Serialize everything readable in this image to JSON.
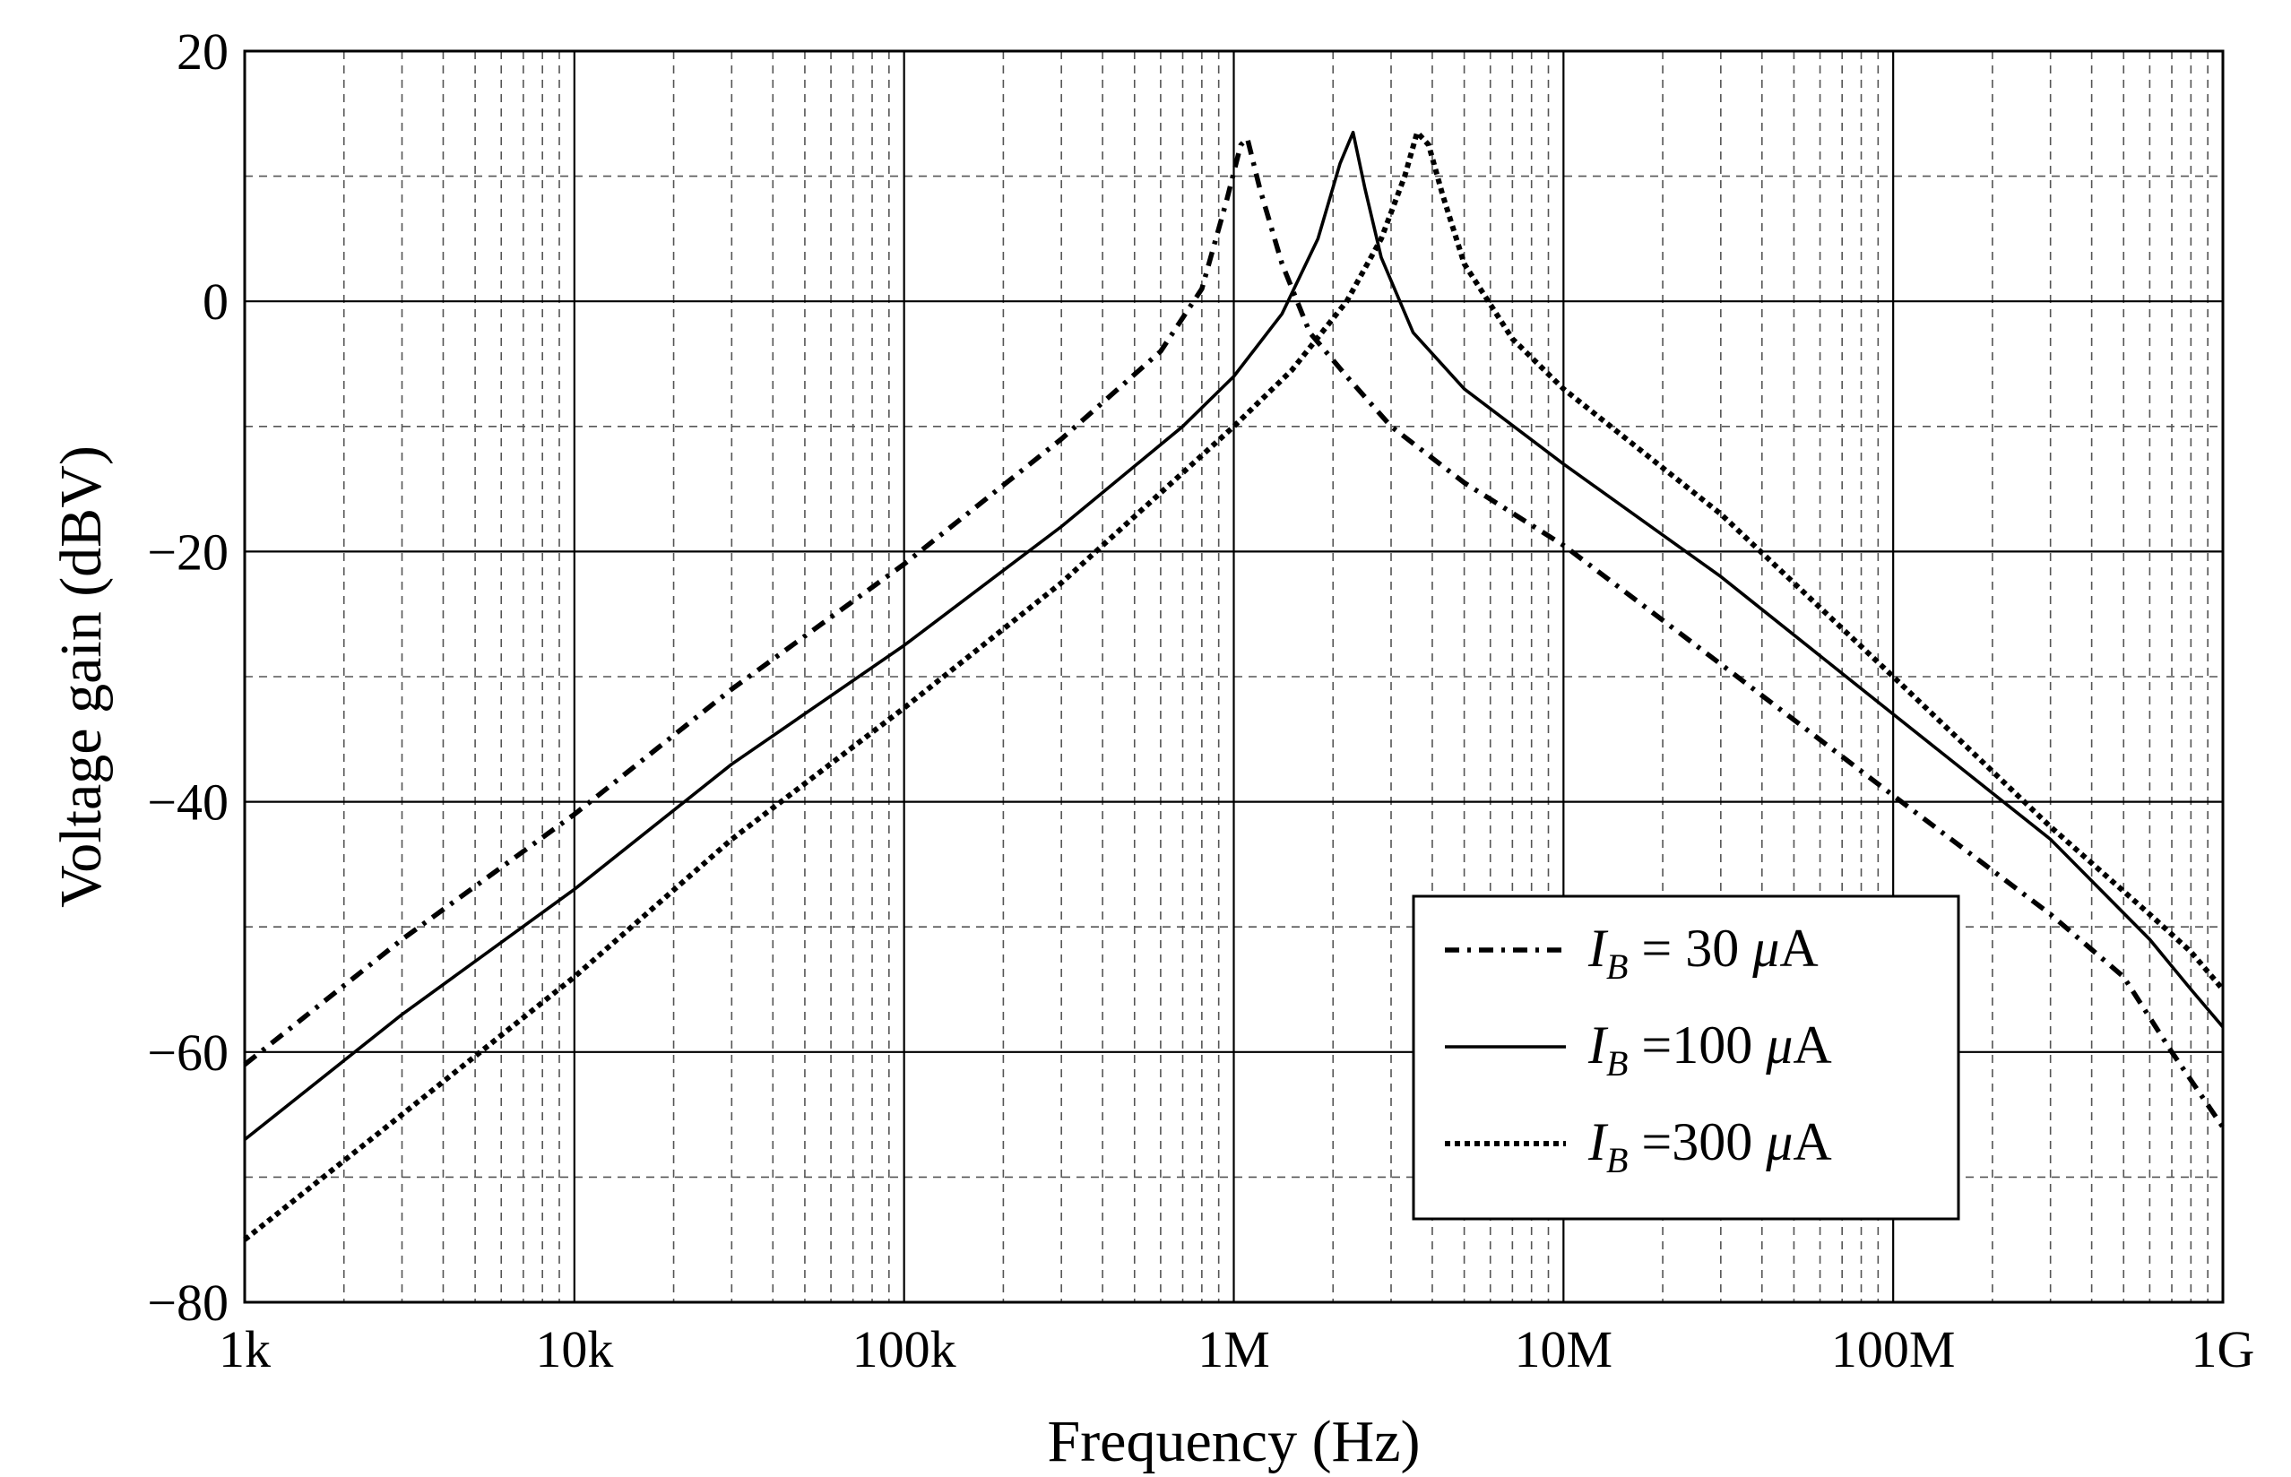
{
  "chart_data": {
    "type": "line",
    "title": "",
    "xlabel": "Frequency (Hz)",
    "ylabel": "Voltage gain (dBV)",
    "xscale": "log",
    "xlim": [
      1000,
      1000000000
    ],
    "ylim": [
      -80,
      20
    ],
    "grid": true,
    "legend_position": "bottom-right",
    "x_ticks": [
      {
        "value": 1000,
        "label": "1k"
      },
      {
        "value": 10000,
        "label": "10k"
      },
      {
        "value": 100000,
        "label": "100k"
      },
      {
        "value": 1000000,
        "label": "1M"
      },
      {
        "value": 10000000,
        "label": "10M"
      },
      {
        "value": 100000000,
        "label": "100M"
      },
      {
        "value": 1000000000,
        "label": "1G"
      }
    ],
    "y_ticks": [
      {
        "value": 20,
        "label": "20"
      },
      {
        "value": 0,
        "label": "0"
      },
      {
        "value": -20,
        "label": "−20"
      },
      {
        "value": -40,
        "label": "−40"
      },
      {
        "value": -60,
        "label": "−60"
      },
      {
        "value": -80,
        "label": "−80"
      }
    ],
    "series": [
      {
        "name": "IB = 30 μA",
        "legend": {
          "var": "I",
          "sub": "B",
          "value": " =  30 ",
          "mu": "μ",
          "unit": "A"
        },
        "style": "dashdot",
        "x": [
          1000,
          3000,
          10000,
          30000,
          100000,
          300000,
          600000,
          800000,
          950000,
          1050000,
          1100000,
          1200000,
          1400000,
          1700000,
          2200000,
          3000000,
          5000000,
          10000000,
          30000000,
          100000000,
          300000000,
          500000000,
          700000000,
          1000000000
        ],
        "y": [
          -61,
          -51,
          -41,
          -31,
          -21,
          -11,
          -4,
          1,
          8,
          12.5,
          13,
          9,
          3,
          -2.5,
          -6,
          -10,
          -14.5,
          -19.5,
          -29,
          -39.5,
          -49,
          -54,
          -60,
          -66
        ]
      },
      {
        "name": "IB = 100 μA",
        "legend": {
          "var": "I",
          "sub": "B",
          "value": " =100 ",
          "mu": "μ",
          "unit": "A"
        },
        "style": "solid",
        "x": [
          1000,
          3000,
          10000,
          30000,
          100000,
          300000,
          700000,
          1000000,
          1400000,
          1800000,
          2100000,
          2300000,
          2500000,
          2800000,
          3500000,
          5000000,
          10000000,
          30000000,
          100000000,
          300000000,
          600000000,
          800000000,
          1000000000
        ],
        "y": [
          -67,
          -57,
          -47,
          -37,
          -27.5,
          -18,
          -10,
          -6,
          -1,
          5,
          11,
          13.5,
          9,
          3.5,
          -2.5,
          -7,
          -13,
          -22,
          -33,
          -43,
          -51,
          -55,
          -58
        ]
      },
      {
        "name": "IB = 300 μA",
        "legend": {
          "var": "I",
          "sub": "B",
          "value": " =300 ",
          "mu": "μ",
          "unit": "A"
        },
        "style": "dotted",
        "x": [
          1000,
          3000,
          10000,
          30000,
          100000,
          300000,
          1000000,
          1500000,
          2200000,
          2800000,
          3300000,
          3600000,
          3900000,
          4300000,
          5000000,
          7000000,
          10000000,
          30000000,
          100000000,
          300000000,
          600000000,
          800000000,
          1000000000
        ],
        "y": [
          -75,
          -65,
          -54,
          -43,
          -32.5,
          -22.5,
          -10,
          -5.5,
          0,
          5,
          10,
          13.5,
          12.5,
          8.5,
          3,
          -3,
          -7,
          -17,
          -30,
          -42,
          -49,
          -52,
          -55
        ]
      }
    ]
  }
}
